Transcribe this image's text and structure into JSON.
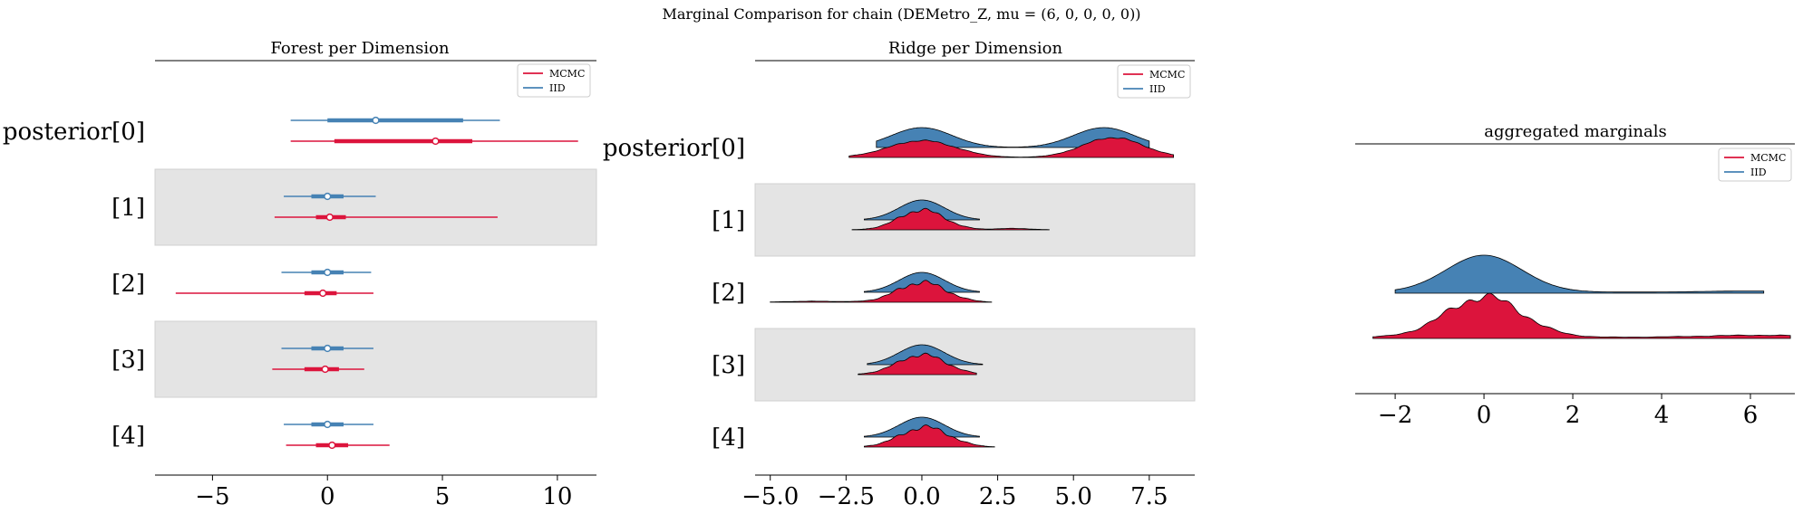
{
  "suptitle": "Marginal Comparison for chain (DEMetro_Z, mu = (6, 0, 0, 0, 0))",
  "colors": {
    "mcmc": "#dc143c",
    "iid": "#4682b4",
    "band": "#e4e4e4",
    "outline": "#000000"
  },
  "chart_data": [
    {
      "type": "forest",
      "title": "Forest per Dimension",
      "xlim": [
        -7.5,
        11.7
      ],
      "xticks": [
        -5,
        0,
        5,
        10
      ],
      "xticklabels": [
        "−5",
        "0",
        "5",
        "10"
      ],
      "row_labels": [
        "posterior[0]",
        "[1]",
        "[2]",
        "[3]",
        "[4]"
      ],
      "legend": {
        "position": "top-right",
        "entries": [
          "MCMC",
          "IID"
        ]
      },
      "series": [
        {
          "name": "IID",
          "color": "#4682b4",
          "rows": [
            {
              "median": 2.1,
              "inner": [
                0.0,
                5.9
              ],
              "outer": [
                -1.6,
                7.5
              ]
            },
            {
              "median": 0.0,
              "inner": [
                -0.7,
                0.7
              ],
              "outer": [
                -1.9,
                2.1
              ]
            },
            {
              "median": 0.0,
              "inner": [
                -0.7,
                0.7
              ],
              "outer": [
                -2.0,
                1.9
              ]
            },
            {
              "median": 0.0,
              "inner": [
                -0.7,
                0.7
              ],
              "outer": [
                -2.0,
                2.0
              ]
            },
            {
              "median": 0.0,
              "inner": [
                -0.7,
                0.7
              ],
              "outer": [
                -1.9,
                2.0
              ]
            }
          ]
        },
        {
          "name": "MCMC",
          "color": "#dc143c",
          "rows": [
            {
              "median": 4.7,
              "inner": [
                0.3,
                6.3
              ],
              "outer": [
                -1.6,
                10.9
              ]
            },
            {
              "median": 0.1,
              "inner": [
                -0.5,
                0.8
              ],
              "outer": [
                -2.3,
                7.4
              ]
            },
            {
              "median": -0.2,
              "inner": [
                -1.0,
                0.4
              ],
              "outer": [
                -6.6,
                2.0
              ]
            },
            {
              "median": -0.1,
              "inner": [
                -1.0,
                0.5
              ],
              "outer": [
                -2.4,
                1.6
              ]
            },
            {
              "median": 0.2,
              "inner": [
                -0.5,
                0.9
              ],
              "outer": [
                -1.8,
                2.7
              ]
            }
          ]
        }
      ]
    },
    {
      "type": "ridge",
      "title": "Ridge per Dimension",
      "xlim": [
        -5.5,
        9.0
      ],
      "xticks": [
        -5.0,
        -2.5,
        0.0,
        2.5,
        5.0,
        7.5
      ],
      "xticklabels": [
        "−5.0",
        "−2.5",
        "0.0",
        "2.5",
        "5.0",
        "7.5"
      ],
      "row_labels": [
        "posterior[0]",
        "[1]",
        "[2]",
        "[3]",
        "[4]"
      ],
      "legend": {
        "position": "top-right",
        "entries": [
          "MCMC",
          "IID"
        ]
      },
      "series": [
        {
          "name": "IID",
          "color": "#4682b4",
          "rows": [
            {
              "range": [
                -1.5,
                7.5
              ],
              "modes": [
                [
                  0.0,
                  1.0,
                  1.0
                ],
                [
                  6.0,
                  1.0,
                  1.0
                ]
              ],
              "wiggle": 0
            },
            {
              "range": [
                -1.9,
                1.9
              ],
              "modes": [
                [
                  0.0,
                  0.75,
                  1.0
                ]
              ],
              "wiggle": 0
            },
            {
              "range": [
                -1.9,
                1.9
              ],
              "modes": [
                [
                  0.0,
                  0.75,
                  1.0
                ]
              ],
              "wiggle": 0
            },
            {
              "range": [
                -1.8,
                2.0
              ],
              "modes": [
                [
                  0.0,
                  0.75,
                  1.0
                ]
              ],
              "wiggle": 0
            },
            {
              "range": [
                -1.9,
                1.9
              ],
              "modes": [
                [
                  0.0,
                  0.75,
                  1.0
                ]
              ],
              "wiggle": 0
            }
          ]
        },
        {
          "name": "MCMC",
          "color": "#dc143c",
          "rows": [
            {
              "range": [
                -2.4,
                8.3
              ],
              "modes": [
                [
                  0.0,
                  1.1,
                  0.85
                ],
                [
                  6.3,
                  1.0,
                  1.0
                ]
              ],
              "wiggle": 0.05
            },
            {
              "range": [
                -2.3,
                4.2
              ],
              "modes": [
                [
                  0.0,
                  0.75,
                  1.0
                ],
                [
                  3.0,
                  0.6,
                  0.07
                ]
              ],
              "wiggle": 0.12
            },
            {
              "range": [
                -5.0,
                2.3
              ],
              "modes": [
                [
                  0.0,
                  0.8,
                  1.0
                ],
                [
                  -3.5,
                  1.0,
                  0.05
                ]
              ],
              "wiggle": 0.15
            },
            {
              "range": [
                -2.1,
                1.8
              ],
              "modes": [
                [
                  0.0,
                  0.8,
                  1.0
                ]
              ],
              "wiggle": 0.12
            },
            {
              "range": [
                -1.9,
                2.4
              ],
              "modes": [
                [
                  0.1,
                  0.8,
                  1.0
                ]
              ],
              "wiggle": 0.14
            }
          ]
        }
      ]
    },
    {
      "type": "ridge",
      "title": "aggregated marginals",
      "xlim": [
        -2.9,
        7.0
      ],
      "xticks": [
        -2,
        0,
        2,
        4,
        6
      ],
      "xticklabels": [
        "−2",
        "0",
        "2",
        "4",
        "6"
      ],
      "legend": {
        "position": "top-right",
        "entries": [
          "MCMC",
          "IID"
        ]
      },
      "series": [
        {
          "name": "IID",
          "color": "#4682b4",
          "rows": [
            {
              "range": [
                -2.0,
                6.3
              ],
              "modes": [
                [
                  0.0,
                  0.85,
                  1.0
                ],
                [
                  6.0,
                  1.0,
                  0.03
                ]
              ],
              "wiggle": 0,
              "floor": 0.03
            }
          ]
        },
        {
          "name": "MCMC",
          "color": "#dc143c",
          "rows": [
            {
              "range": [
                -2.5,
                6.9
              ],
              "modes": [
                [
                  0.0,
                  0.85,
                  1.0
                ],
                [
                  6.2,
                  1.2,
                  0.05
                ]
              ],
              "wiggle": 0.13,
              "floor": 0.03
            }
          ]
        }
      ]
    }
  ]
}
